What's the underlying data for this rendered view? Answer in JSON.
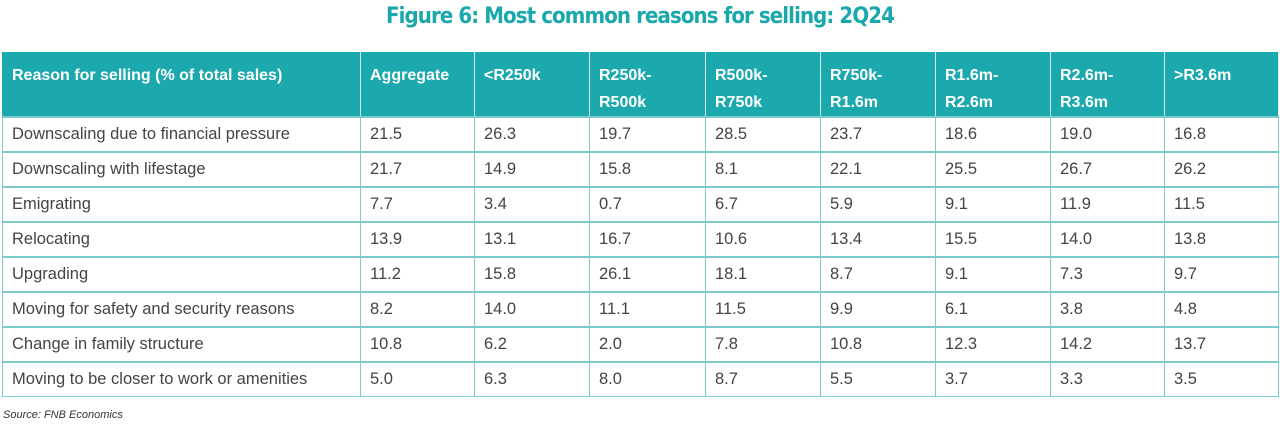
{
  "title": "Figure 6: Most common reasons for selling: 2Q24",
  "table": {
    "headers": [
      "Reason for selling (% of total sales)",
      "Aggregate",
      "<R250k",
      "R250k-\nR500k",
      "R500k-\nR750k",
      "R750k-\nR1.6m",
      "R1.6m-\nR2.6m",
      "R2.6m-\nR3.6m",
      ">R3.6m"
    ],
    "rows": [
      [
        "Downscaling due to financial pressure",
        "21.5",
        "26.3",
        "19.7",
        "28.5",
        "23.7",
        "18.6",
        "19.0",
        "16.8"
      ],
      [
        "Downscaling with lifestage",
        "21.7",
        "14.9",
        "15.8",
        "8.1",
        "22.1",
        "25.5",
        "26.7",
        "26.2"
      ],
      [
        "Emigrating",
        "7.7",
        "3.4",
        "0.7",
        "6.7",
        "5.9",
        "9.1",
        "11.9",
        "11.5"
      ],
      [
        "Relocating",
        "13.9",
        "13.1",
        "16.7",
        "10.6",
        "13.4",
        "15.5",
        "14.0",
        "13.8"
      ],
      [
        "Upgrading",
        "11.2",
        "15.8",
        "26.1",
        "18.1",
        "8.7",
        "9.1",
        "7.3",
        "9.7"
      ],
      [
        "Moving for safety and security reasons",
        "8.2",
        "14.0",
        "11.1",
        "11.5",
        "9.9",
        "6.1",
        "3.8",
        "4.8"
      ],
      [
        "Change in family structure",
        "10.8",
        "6.2",
        "2.0",
        "7.8",
        "10.8",
        "12.3",
        "14.2",
        "13.7"
      ],
      [
        "Moving to be closer to work or amenities",
        "5.0",
        "6.3",
        "8.0",
        "8.7",
        "5.5",
        "3.7",
        "3.3",
        "3.5"
      ]
    ]
  },
  "source": "Source: FNB Economics",
  "colors": {
    "accent": "#1ba9ae",
    "grid": "#7ccac9"
  }
}
